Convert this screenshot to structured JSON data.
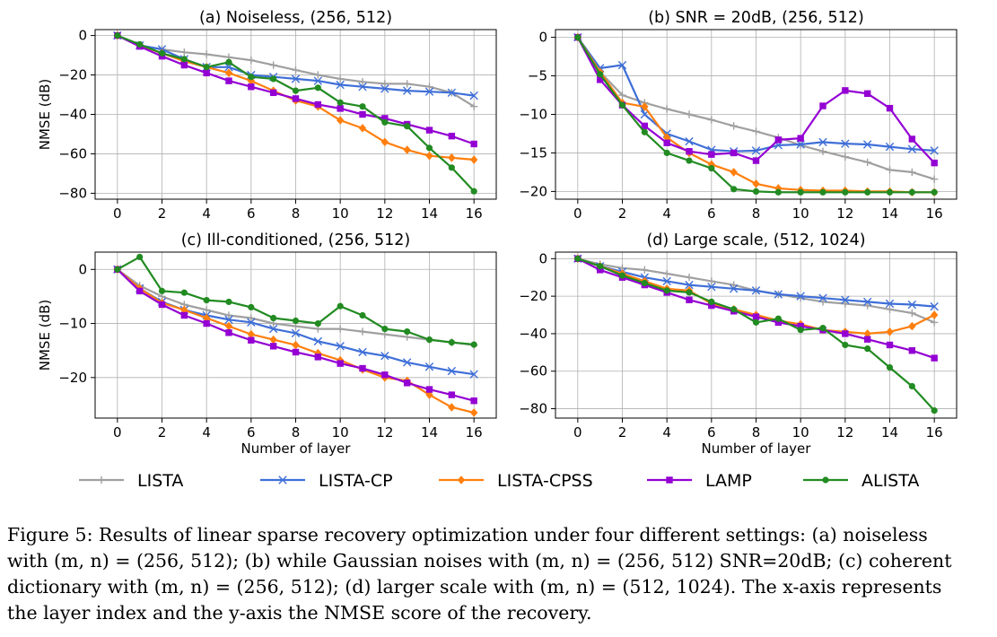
{
  "chart_data": [
    {
      "type": "line",
      "title": "(a) Noiseless, (256, 512)",
      "xlabel": "",
      "ylabel": "NMSE (dB)",
      "xlim": [
        -1,
        17
      ],
      "ylim": [
        -83,
        3
      ],
      "xticks": [
        0,
        2,
        4,
        6,
        8,
        10,
        12,
        14,
        16
      ],
      "yticks": [
        0,
        -20,
        -40,
        -60,
        -80
      ],
      "grid": true,
      "x": [
        0,
        1,
        2,
        3,
        4,
        5,
        6,
        7,
        8,
        9,
        10,
        11,
        12,
        13,
        14,
        15,
        16
      ],
      "series": [
        {
          "name": "LISTA",
          "values": [
            0,
            -5,
            -7,
            -8.5,
            -9.5,
            -11,
            -12.5,
            -15,
            -17.5,
            -20,
            -22,
            -23.5,
            -24.5,
            -24.5,
            -26,
            -29,
            -36
          ]
        },
        {
          "name": "LISTA-CP",
          "values": [
            0,
            -5,
            -7,
            -12,
            -16,
            -16,
            -20,
            -21,
            -22,
            -23,
            -25,
            -26,
            -27,
            -28,
            -28.5,
            -29,
            -30.5
          ]
        },
        {
          "name": "LISTA-CPSS",
          "values": [
            0,
            -5,
            -9,
            -13,
            -16,
            -19,
            -23,
            -28,
            -33,
            -36,
            -43,
            -47,
            -54,
            -58,
            -61,
            -62,
            -63
          ]
        },
        {
          "name": "LAMP",
          "values": [
            0,
            -5.5,
            -10.5,
            -15,
            -19,
            -23,
            -26,
            -29,
            -32,
            -35,
            -37,
            -40,
            -42,
            -45,
            -48,
            -51,
            -55
          ]
        },
        {
          "name": "ALISTA",
          "values": [
            0,
            -4.5,
            -9,
            -12,
            -16,
            -13.5,
            -21,
            -22,
            -28,
            -26.5,
            -34,
            -36,
            -44,
            -46,
            -57,
            -67,
            -79
          ]
        }
      ]
    },
    {
      "type": "line",
      "title": "(b) SNR = 20dB, (256, 512)",
      "xlabel": "",
      "ylabel": "",
      "xlim": [
        -1,
        17
      ],
      "ylim": [
        -21,
        1
      ],
      "xticks": [
        0,
        2,
        4,
        6,
        8,
        10,
        12,
        14,
        16
      ],
      "yticks": [
        0,
        -5,
        -10,
        -15,
        -20
      ],
      "grid": true,
      "x": [
        0,
        1,
        2,
        3,
        4,
        5,
        6,
        7,
        8,
        9,
        10,
        11,
        12,
        13,
        14,
        15,
        16
      ],
      "series": [
        {
          "name": "LISTA",
          "values": [
            0,
            -4.5,
            -7.5,
            -8.5,
            -9.3,
            -10,
            -10.7,
            -11.5,
            -12.2,
            -13,
            -14,
            -14.8,
            -15.5,
            -16.2,
            -17.2,
            -17.5,
            -18.4
          ]
        },
        {
          "name": "LISTA-CP",
          "values": [
            0,
            -4,
            -3.6,
            -10,
            -12.5,
            -13.5,
            -14.6,
            -14.8,
            -14.7,
            -14,
            -13.9,
            -13.6,
            -13.8,
            -13.9,
            -14.2,
            -14.5,
            -14.7
          ]
        },
        {
          "name": "LISTA-CPSS",
          "values": [
            0,
            -4.5,
            -8.5,
            -9,
            -13,
            -15,
            -16.5,
            -17.5,
            -19,
            -19.6,
            -19.8,
            -19.9,
            -19.9,
            -20,
            -20,
            -20.1,
            -20.1
          ]
        },
        {
          "name": "LAMP",
          "values": [
            0,
            -5.5,
            -8.8,
            -11.5,
            -13.7,
            -14.8,
            -15.2,
            -15,
            -16,
            -13.3,
            -13.1,
            -8.9,
            -6.9,
            -7.3,
            -9.2,
            -13.2,
            -16.3
          ]
        },
        {
          "name": "ALISTA",
          "values": [
            0,
            -4.8,
            -8.8,
            -12.3,
            -15,
            -16,
            -17,
            -19.7,
            -20,
            -20.1,
            -20.1,
            -20.1,
            -20.1,
            -20.1,
            -20.1,
            -20.1,
            -20.1
          ]
        }
      ]
    },
    {
      "type": "line",
      "title": "(c) Ill-conditioned, (256, 512)",
      "xlabel": "Number of layer",
      "ylabel": "NMSE (dB)",
      "xlim": [
        -1,
        17
      ],
      "ylim": [
        -27.5,
        3.2
      ],
      "xticks": [
        0,
        2,
        4,
        6,
        8,
        10,
        12,
        14,
        16
      ],
      "yticks": [
        0,
        -10,
        -20
      ],
      "grid": true,
      "x": [
        0,
        1,
        2,
        3,
        4,
        5,
        6,
        7,
        8,
        9,
        10,
        11,
        12,
        13,
        14,
        15,
        16
      ],
      "series": [
        {
          "name": "LISTA",
          "values": [
            0,
            -3,
            -5,
            -6.5,
            -7.5,
            -8.5,
            -9,
            -10,
            -10.5,
            -11,
            -11,
            -11.5,
            -12,
            -12.5,
            -13,
            -13.5,
            -14
          ]
        },
        {
          "name": "LISTA-CP",
          "values": [
            0,
            -3.5,
            -6,
            -7.5,
            -8.5,
            -9.3,
            -9.8,
            -11,
            -11.8,
            -13.3,
            -14.2,
            -15.3,
            -16,
            -17.2,
            -18,
            -18.8,
            -19.4
          ]
        },
        {
          "name": "LISTA-CPSS",
          "values": [
            0,
            -3.5,
            -6.2,
            -7.5,
            -9,
            -10.5,
            -12,
            -13,
            -14,
            -15.5,
            -16.8,
            -18.5,
            -20,
            -20.6,
            -23.2,
            -25.5,
            -26.5
          ]
        },
        {
          "name": "LAMP",
          "values": [
            0,
            -4,
            -6.5,
            -8.5,
            -10,
            -11.7,
            -13.1,
            -14.2,
            -15.3,
            -16.2,
            -17.4,
            -18.3,
            -19.5,
            -21,
            -22.2,
            -23.2,
            -24.3
          ]
        },
        {
          "name": "ALISTA",
          "values": [
            0,
            2.3,
            -4,
            -4.3,
            -5.7,
            -6,
            -7,
            -9,
            -9.5,
            -10,
            -6.8,
            -8.5,
            -11,
            -11.5,
            -13,
            -13.5,
            -13.9
          ]
        }
      ]
    },
    {
      "type": "line",
      "title": "(d) Large scale, (512, 1024)",
      "xlabel": "Number of layer",
      "ylabel": "",
      "xlim": [
        -1,
        17
      ],
      "ylim": [
        -85,
        3.5
      ],
      "xticks": [
        0,
        2,
        4,
        6,
        8,
        10,
        12,
        14,
        16
      ],
      "yticks": [
        0,
        -20,
        -40,
        -60,
        -80
      ],
      "grid": true,
      "x": [
        0,
        1,
        2,
        3,
        4,
        5,
        6,
        7,
        8,
        9,
        10,
        11,
        12,
        13,
        14,
        15,
        16
      ],
      "series": [
        {
          "name": "LISTA",
          "values": [
            0,
            -3,
            -5,
            -6,
            -8,
            -10,
            -12,
            -14,
            -17,
            -19,
            -21,
            -23,
            -24,
            -25,
            -27,
            -29,
            -34
          ]
        },
        {
          "name": "LISTA-CP",
          "values": [
            0,
            -4,
            -7,
            -10,
            -12,
            -14,
            -15,
            -16,
            -17,
            -19,
            -20,
            -21,
            -22,
            -23,
            -24,
            -24.5,
            -25.5
          ]
        },
        {
          "name": "LISTA-CPSS",
          "values": [
            0,
            -4,
            -8,
            -12,
            -16,
            -17,
            -24,
            -27,
            -30,
            -33,
            -35,
            -38,
            -39,
            -40,
            -39,
            -36,
            -30
          ]
        },
        {
          "name": "LAMP",
          "values": [
            0,
            -6,
            -10,
            -14,
            -18,
            -22,
            -25,
            -28,
            -31,
            -34,
            -36,
            -38,
            -40,
            -43,
            -46,
            -49,
            -53
          ]
        },
        {
          "name": "ALISTA",
          "values": [
            0,
            -4,
            -9,
            -13,
            -17,
            -18,
            -23,
            -27,
            -34,
            -32,
            -38,
            -37,
            -46,
            -48,
            -58,
            -68,
            -81
          ]
        }
      ]
    }
  ],
  "legend": {
    "placement": "bottom",
    "entries": [
      {
        "name": "LISTA",
        "color": "#a0a0a0",
        "marker": "plus"
      },
      {
        "name": "LISTA-CP",
        "color": "#3f6fd8",
        "marker": "x"
      },
      {
        "name": "LISTA-CPSS",
        "color": "#ff7f0e",
        "marker": "diamond"
      },
      {
        "name": "LAMP",
        "color": "#9400d3",
        "marker": "square"
      },
      {
        "name": "ALISTA",
        "color": "#228b22",
        "marker": "circle"
      }
    ]
  },
  "caption": {
    "line1": "Figure 5: Results of linear sparse recovery optimization under four different settings: (a) noiseless",
    "line2": "with (m, n) = (256, 512); (b) while Gaussian noises with (m, n) = (256, 512) SNR=20dB; (c) coherent",
    "line3": "dictionary with (m, n) = (256, 512); (d) larger scale with (m, n) = (512, 1024). The x-axis represents",
    "line4": "the layer index and the y-axis the NMSE score of the recovery."
  }
}
